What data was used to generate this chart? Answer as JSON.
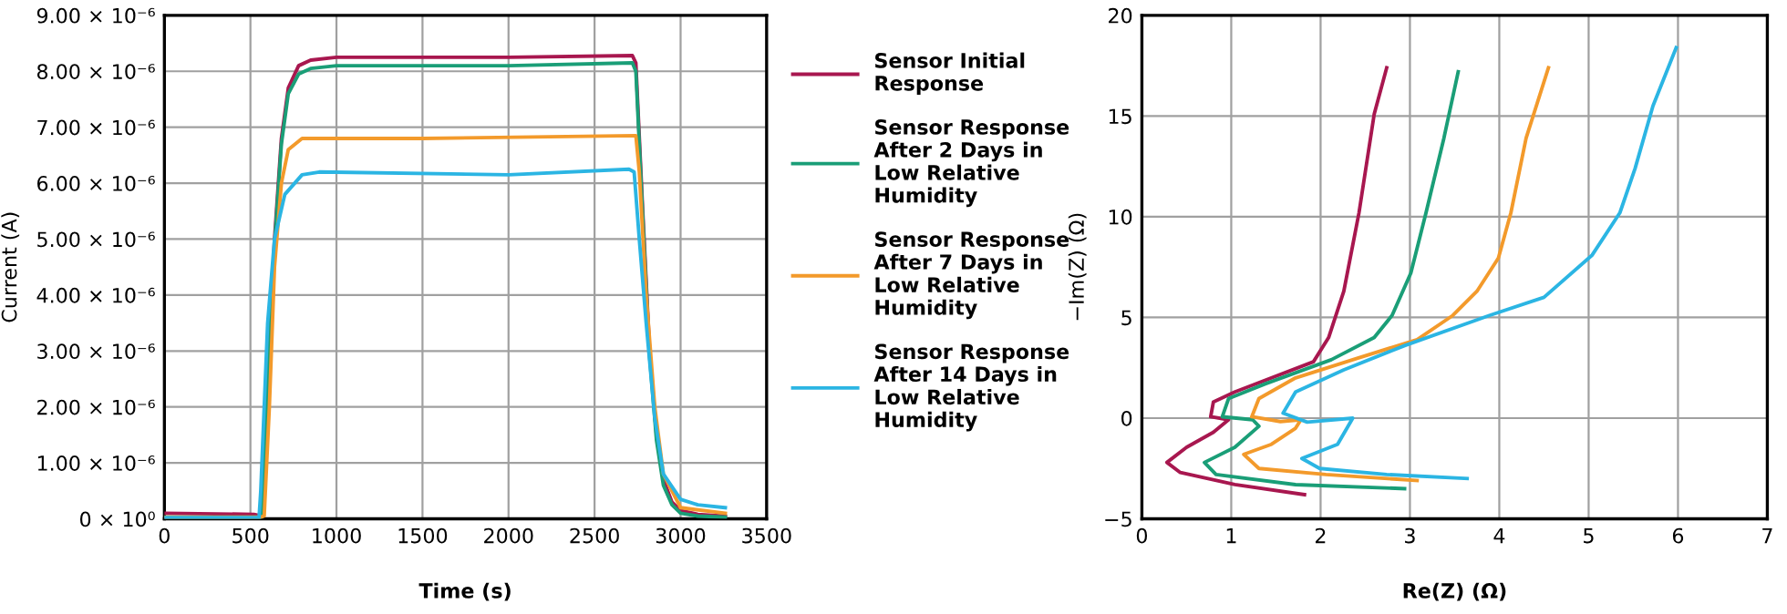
{
  "chart_data": [
    {
      "type": "line",
      "xlabel": "Time (s)",
      "ylabel": "Current (A)",
      "xlim": [
        0,
        3500
      ],
      "xticks": [
        0,
        500,
        1000,
        1500,
        2000,
        2500,
        3000,
        3500
      ],
      "ylim": [
        0,
        9e-06
      ],
      "yticks": [
        {
          "value": 0,
          "label": "0 × 10⁰"
        },
        {
          "value": 1e-06,
          "label": "1.00 × 10⁻⁶"
        },
        {
          "value": 2e-06,
          "label": "2.00 × 10⁻⁶"
        },
        {
          "value": 3e-06,
          "label": "3.00 × 10⁻⁶"
        },
        {
          "value": 4e-06,
          "label": "4.00 × 10⁻⁶"
        },
        {
          "value": 5e-06,
          "label": "5.00 × 10⁻⁶"
        },
        {
          "value": 6e-06,
          "label": "6.00 × 10⁻⁶"
        },
        {
          "value": 7e-06,
          "label": "7.00 × 10⁻⁶"
        },
        {
          "value": 8e-06,
          "label": "8.00 × 10⁻⁶"
        },
        {
          "value": 9e-06,
          "label": "9.00 × 10⁻⁶"
        }
      ],
      "grid": true,
      "legend": "right",
      "line_style": "solid",
      "marker": "none",
      "series": [
        {
          "name": "Sensor Initial Response",
          "color": "#a8174f",
          "x": [
            0,
            520,
            565,
            600,
            640,
            680,
            720,
            780,
            850,
            1000,
            2000,
            2720,
            2740,
            2780,
            2820,
            2860,
            2900,
            2950,
            3000,
            3100,
            3260
          ],
          "values": [
            1e-07,
            8e-08,
            5e-08,
            2.5e-06,
            5e-06,
            6.8e-06,
            7.7e-06,
            8.1e-06,
            8.2e-06,
            8.25e-06,
            8.25e-06,
            8.28e-06,
            8.15e-06,
            5.5e-06,
            3e-06,
            1.5e-06,
            7e-07,
            3e-07,
            1.5e-07,
            8e-08,
            5e-08
          ]
        },
        {
          "name": "Sensor Response After 2 Days in Low Relative Humidity",
          "color": "#1a9e77",
          "x": [
            0,
            520,
            565,
            600,
            640,
            680,
            720,
            780,
            850,
            1000,
            2000,
            2720,
            2740,
            2780,
            2820,
            2860,
            2900,
            2950,
            3000,
            3100,
            3260
          ],
          "values": [
            3e-08,
            3e-08,
            3e-08,
            2.4e-06,
            4.9e-06,
            6.7e-06,
            7.6e-06,
            7.95e-06,
            8.05e-06,
            8.1e-06,
            8.1e-06,
            8.15e-06,
            8e-06,
            5.4e-06,
            2.9e-06,
            1.4e-06,
            6e-07,
            2.5e-07,
            1e-07,
            5e-08,
            3e-08
          ]
        },
        {
          "name": "Sensor Response After 7 Days in Low Relative Humidity",
          "color": "#f39a2b",
          "x": [
            0,
            560,
            580,
            610,
            640,
            680,
            720,
            800,
            1500,
            2740,
            2760,
            2800,
            2850,
            2900,
            3000,
            3260
          ],
          "values": [
            3e-08,
            3e-08,
            5e-08,
            2e-06,
            4.5e-06,
            6e-06,
            6.6e-06,
            6.8e-06,
            6.8e-06,
            6.85e-06,
            6.2e-06,
            4e-06,
            2e-06,
            8e-07,
            2e-07,
            1e-07
          ]
        },
        {
          "name": "Sensor Response After 14 Days in Low Relative Humidity",
          "color": "#2bb5e3",
          "x": [
            0,
            550,
            560,
            600,
            640,
            700,
            800,
            900,
            2000,
            2700,
            2730,
            2760,
            2800,
            2850,
            2900,
            3000,
            3100,
            3260
          ],
          "values": [
            2e-08,
            2e-08,
            5e-07,
            3.5e-06,
            5e-06,
            5.8e-06,
            6.15e-06,
            6.2e-06,
            6.15e-06,
            6.25e-06,
            6.2e-06,
            5e-06,
            3.5e-06,
            1.8e-06,
            8e-07,
            3.5e-07,
            2.5e-07,
            2e-07
          ]
        }
      ]
    },
    {
      "type": "line",
      "xlabel": "Re(Z) (Ω)",
      "ylabel": "−Im(Z) (Ω)",
      "xlim": [
        0,
        7
      ],
      "xticks": [
        0,
        1,
        2,
        3,
        4,
        5,
        6,
        7
      ],
      "ylim": [
        -5,
        20
      ],
      "yticks": [
        {
          "value": -5,
          "label": "−5"
        },
        0,
        5,
        10,
        15,
        20
      ],
      "grid": true,
      "line_style": "solid",
      "marker": "none",
      "series": [
        {
          "color": "#a8174f",
          "x": [
            2.74,
            2.6,
            2.43,
            2.26,
            2.09,
            1.92,
            1.04,
            0.8,
            0.77,
            0.97,
            0.8,
            0.5,
            0.28,
            0.43,
            1.04,
            1.82
          ],
          "values": [
            17.4,
            15.1,
            10.2,
            6.3,
            4.0,
            2.8,
            1.3,
            0.8,
            0.07,
            -0.08,
            -0.7,
            -1.45,
            -2.2,
            -2.7,
            -3.3,
            -3.8
          ]
        },
        {
          "color": "#1a9e77",
          "x": [
            3.54,
            3.38,
            3.18,
            3.01,
            2.8,
            2.6,
            2.12,
            1.38,
            0.97,
            0.9,
            1.24,
            1.31,
            1.04,
            0.7,
            0.83,
            1.72,
            2.94
          ],
          "values": [
            17.2,
            13.9,
            10.2,
            7.2,
            5.1,
            4.0,
            2.9,
            1.7,
            0.97,
            0.07,
            -0.08,
            -0.4,
            -1.45,
            -2.2,
            -2.8,
            -3.3,
            -3.5
          ]
        },
        {
          "color": "#f39a2b",
          "x": [
            4.55,
            4.3,
            4.13,
            3.99,
            3.75,
            3.48,
            3.08,
            2.4,
            1.72,
            1.31,
            1.23,
            1.55,
            1.78,
            1.72,
            1.45,
            1.14,
            1.31,
            2.06,
            3.08
          ],
          "values": [
            17.4,
            13.9,
            10.2,
            7.95,
            6.3,
            5.1,
            3.9,
            2.96,
            2.0,
            0.97,
            0.07,
            -0.17,
            -0.08,
            -0.5,
            -1.3,
            -1.8,
            -2.5,
            -2.8,
            -3.1
          ]
        },
        {
          "color": "#2bb5e3",
          "x": [
            5.98,
            5.72,
            5.52,
            5.35,
            5.04,
            4.5,
            3.89,
            2.94,
            2.26,
            1.72,
            1.58,
            1.85,
            2.36,
            2.19,
            1.79,
            1.99,
            2.74,
            3.64
          ],
          "values": [
            18.4,
            15.5,
            12.4,
            10.2,
            8.1,
            6.0,
            5.1,
            3.6,
            2.4,
            1.3,
            0.25,
            -0.2,
            0.0,
            -1.3,
            -2.0,
            -2.5,
            -2.8,
            -3.0
          ]
        }
      ]
    }
  ]
}
